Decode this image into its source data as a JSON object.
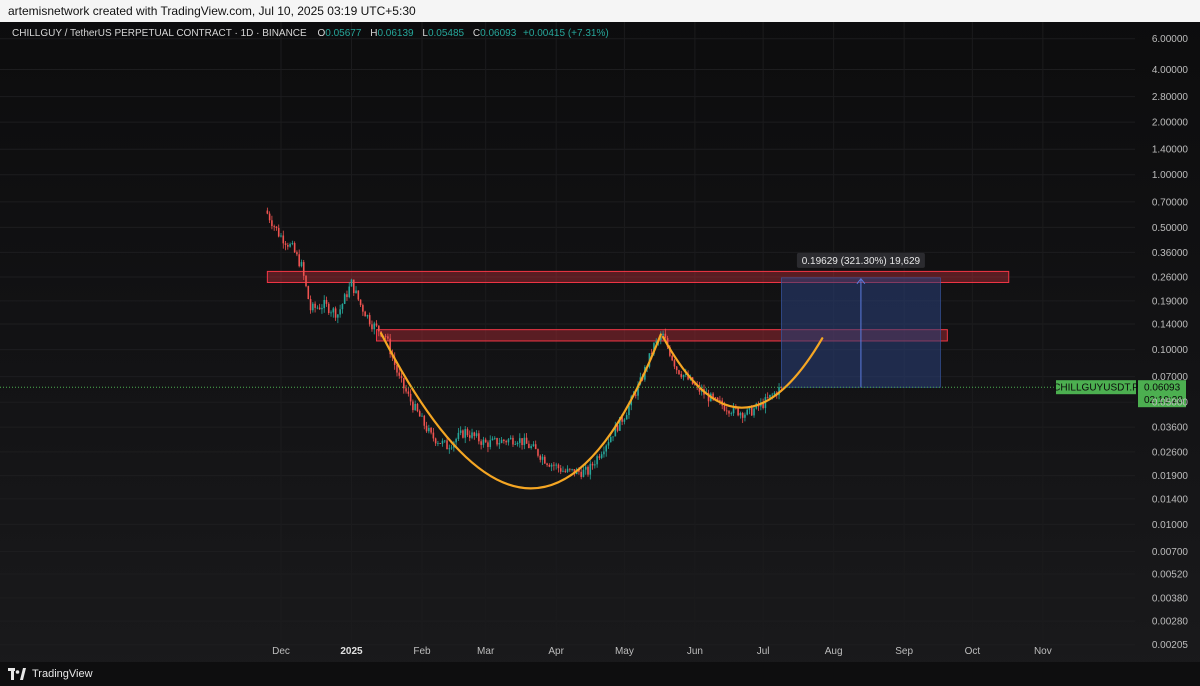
{
  "header": {
    "created_text": "artemisnetwork created with TradingView.com, Jul 10, 2025 03:19 UTC+5:30"
  },
  "legend": {
    "symbol_text": "CHILLGUY / TetherUS PERPETUAL CONTRACT · 1D · BINANCE",
    "open_label": "O",
    "open_value": "0.05677",
    "high_label": "H",
    "high_value": "0.06139",
    "low_label": "L",
    "low_value": "0.05485",
    "close_label": "C",
    "close_value": "0.06093",
    "change_value": "+0.00415 (+7.31%)"
  },
  "measure_label": "0.19629 (321.30%) 19,629",
  "price_tag": {
    "symbol": "CHILLGUYUSDT.P",
    "price": "0.06093",
    "countdown": "02:10:28"
  },
  "footer": {
    "brand": "TradingView"
  },
  "colors": {
    "up": "#26a69a",
    "down": "#ef5350",
    "curve": "#f5a623",
    "zone_fill": "#f23645",
    "target_fill": "#2a3f7a",
    "tag": "#4caf50"
  },
  "chart_data": {
    "type": "candlestick",
    "scale": "log",
    "ylim": [
      0.0023,
      7.0
    ],
    "y_ticks": [
      "6.00000",
      "4.00000",
      "2.80000",
      "2.00000",
      "1.40000",
      "1.00000",
      "0.70000",
      "0.50000",
      "0.36000",
      "0.26000",
      "0.19000",
      "0.14000",
      "0.10000",
      "0.07000",
      "0.05000",
      "0.03600",
      "0.02600",
      "0.01900",
      "0.01400",
      "0.01000",
      "0.00700",
      "0.00520",
      "0.00380",
      "0.00280",
      "0.00205"
    ],
    "x_ticks": [
      {
        "label": "Dec",
        "date": "2024-12-01"
      },
      {
        "label": "2025",
        "date": "2025-01-01",
        "bold": true
      },
      {
        "label": "Feb",
        "date": "2025-02-01"
      },
      {
        "label": "Mar",
        "date": "2025-03-01"
      },
      {
        "label": "Apr",
        "date": "2025-04-01"
      },
      {
        "label": "May",
        "date": "2025-05-01"
      },
      {
        "label": "Jun",
        "date": "2025-06-01"
      },
      {
        "label": "Jul",
        "date": "2025-07-01"
      },
      {
        "label": "Aug",
        "date": "2025-08-01"
      },
      {
        "label": "Sep",
        "date": "2025-09-01"
      },
      {
        "label": "Oct",
        "date": "2025-10-01"
      },
      {
        "label": "Nov",
        "date": "2025-11-01"
      }
    ],
    "close_anchors": [
      [
        "2024-11-25",
        0.6
      ],
      [
        "2024-11-30",
        0.46
      ],
      [
        "2024-12-06",
        0.38
      ],
      [
        "2024-12-10",
        0.3
      ],
      [
        "2024-12-14",
        0.17
      ],
      [
        "2024-12-20",
        0.18
      ],
      [
        "2024-12-26",
        0.16
      ],
      [
        "2025-01-01",
        0.24
      ],
      [
        "2025-01-05",
        0.18
      ],
      [
        "2025-01-10",
        0.14
      ],
      [
        "2025-01-16",
        0.12
      ],
      [
        "2025-01-22",
        0.068
      ],
      [
        "2025-01-28",
        0.048
      ],
      [
        "2025-02-05",
        0.032
      ],
      [
        "2025-02-12",
        0.028
      ],
      [
        "2025-02-20",
        0.034
      ],
      [
        "2025-03-01",
        0.029
      ],
      [
        "2025-03-08",
        0.03
      ],
      [
        "2025-03-15",
        0.031
      ],
      [
        "2025-03-22",
        0.027
      ],
      [
        "2025-03-28",
        0.023
      ],
      [
        "2025-04-05",
        0.02
      ],
      [
        "2025-04-15",
        0.02
      ],
      [
        "2025-04-22",
        0.028
      ],
      [
        "2025-05-01",
        0.042
      ],
      [
        "2025-05-08",
        0.065
      ],
      [
        "2025-05-14",
        0.105
      ],
      [
        "2025-05-18",
        0.12
      ],
      [
        "2025-05-24",
        0.078
      ],
      [
        "2025-06-02",
        0.06
      ],
      [
        "2025-06-10",
        0.05
      ],
      [
        "2025-06-18",
        0.045
      ],
      [
        "2025-06-24",
        0.043
      ],
      [
        "2025-07-01",
        0.049
      ],
      [
        "2025-07-09",
        0.0609
      ]
    ],
    "zones": [
      {
        "from": "2024-11-25",
        "to": "2025-10-17",
        "low": 0.242,
        "high": 0.28
      },
      {
        "from": "2025-01-12",
        "to": "2025-09-20",
        "low": 0.112,
        "high": 0.13
      }
    ],
    "target_box": {
      "from": "2025-07-09",
      "to": "2025-09-17",
      "low": 0.0609,
      "high": 0.2572
    },
    "current_price": 0.06093,
    "curves": [
      {
        "start": [
          "2025-01-14",
          0.124
        ],
        "control": [
          "2025-03-25",
          0.0021
        ],
        "end": [
          "2025-05-17",
          0.122
        ]
      },
      {
        "start": [
          "2025-05-18",
          0.118
        ],
        "control": [
          "2025-06-21",
          0.0185
        ],
        "end": [
          "2025-07-27",
          0.116
        ]
      }
    ]
  }
}
